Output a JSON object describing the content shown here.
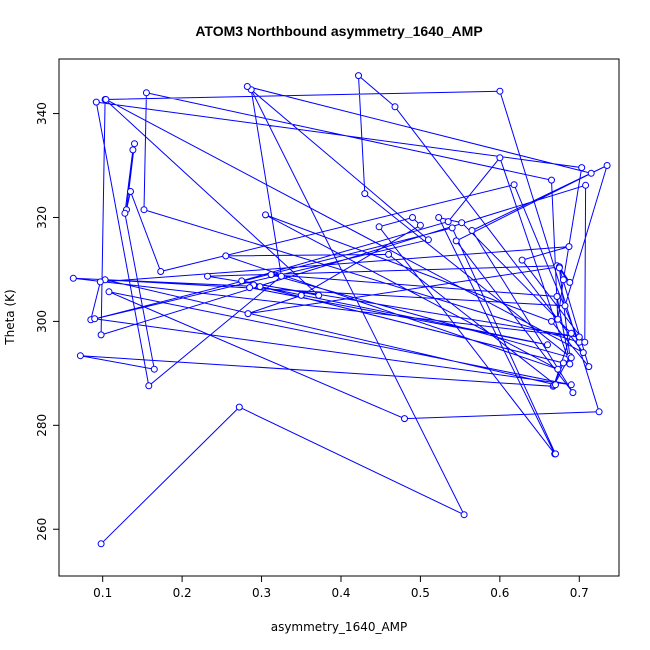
{
  "chart_data": {
    "type": "line",
    "title": "ATOM3 Northbound asymmetry_1640_AMP",
    "xlabel": "asymmetry_1640_AMP",
    "ylabel": "Theta (K)",
    "xlim": [
      0.045,
      0.75
    ],
    "ylim": [
      251.0,
      350.5
    ],
    "xticks": [
      0.1,
      0.2,
      0.3,
      0.4,
      0.5,
      0.6,
      0.7
    ],
    "xtick_labels": [
      "0.1",
      "0.2",
      "0.3",
      "0.4",
      "0.5",
      "0.6",
      "0.7"
    ],
    "yticks": [
      260,
      280,
      300,
      320,
      340
    ],
    "ytick_labels": [
      "260",
      "280",
      "300",
      "320",
      "340"
    ],
    "grid": false,
    "series": [
      {
        "color": "#0000ff",
        "marker": "open-circle",
        "x": [
          0.098,
          0.272,
          0.555,
          0.287,
          0.325,
          0.158,
          0.092,
          0.703,
          0.68,
          0.673,
          0.665,
          0.155,
          0.152,
          0.7,
          0.618,
          0.173,
          0.135,
          0.13,
          0.14,
          0.138,
          0.128,
          0.165,
          0.072,
          0.667,
          0.68,
          0.29,
          0.285,
          0.66,
          0.298,
          0.063,
          0.7,
          0.232,
          0.672,
          0.688,
          0.675,
          0.283,
          0.35,
          0.5,
          0.49,
          0.448,
          0.669,
          0.523,
          0.552,
          0.69,
          0.668,
          0.688,
          0.675,
          0.712,
          0.665,
          0.305,
          0.673,
          0.255,
          0.46,
          0.67,
          0.103,
          0.682,
          0.735,
          0.565,
          0.692,
          0.545,
          0.715,
          0.282,
          0.51,
          0.085,
          0.097,
          0.687,
          0.628,
          0.707,
          0.708,
          0.098,
          0.103,
          0.372,
          0.275,
          0.535,
          0.6,
          0.688,
          0.672,
          0.312,
          0.69,
          0.43,
          0.422,
          0.468,
          0.705,
          0.104,
          0.6,
          0.725,
          0.48,
          0.108,
          0.69,
          0.09,
          0.54,
          0.67
        ],
        "y": [
          257.2,
          283.5,
          262.8,
          344.6,
          308.7,
          287.6,
          342.2,
          329.6,
          308.0,
          300.4,
          327.2,
          344.0,
          321.5,
          296.0,
          326.3,
          309.6,
          325.0,
          321.5,
          334.2,
          333.0,
          320.8,
          290.8,
          293.4,
          287.5,
          292.0,
          307.0,
          306.5,
          295.5,
          306.7,
          308.3,
          297.0,
          308.7,
          310.7,
          307.5,
          310.5,
          301.5,
          305.0,
          318.5,
          320.0,
          318.2,
          274.5,
          320.0,
          319.0,
          297.7,
          287.7,
          293.3,
          310.3,
          291.3,
          300.0,
          320.5,
          290.8,
          312.6,
          312.9,
          287.8,
          308.0,
          303.0,
          330.0,
          317.5,
          286.3,
          315.5,
          328.5,
          345.2,
          315.7,
          300.3,
          307.6,
          314.4,
          311.8,
          296.0,
          326.2,
          297.4,
          342.7,
          305.0,
          307.8,
          319.2,
          331.5,
          291.8,
          304.8,
          309.0,
          293.0,
          324.6,
          347.3,
          341.3,
          294.0,
          342.7,
          344.3,
          282.6,
          281.3,
          305.7,
          287.8,
          300.5,
          318.0,
          274.5
        ]
      }
    ]
  }
}
